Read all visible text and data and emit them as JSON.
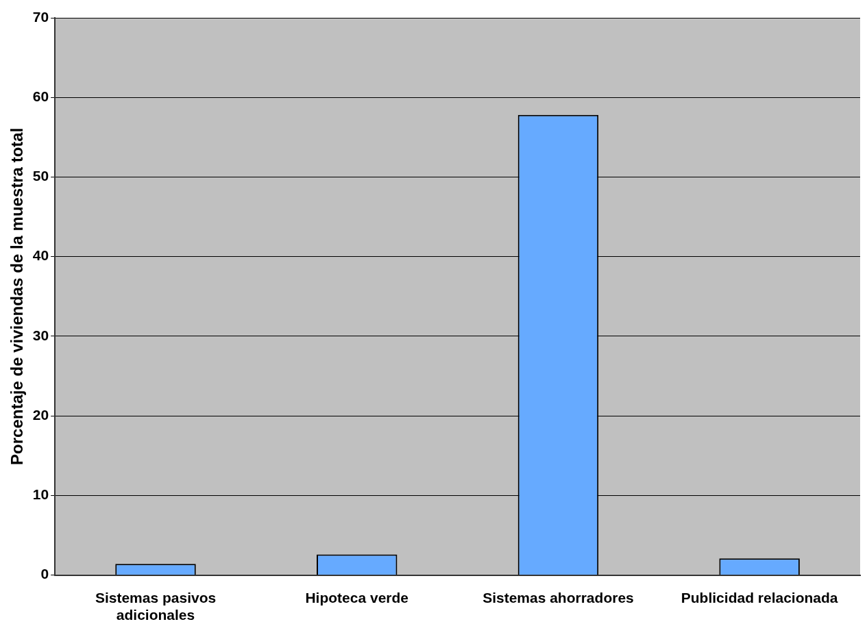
{
  "chart_data": {
    "type": "bar",
    "ylabel": "Porcentaje de viviendas de la muestra total",
    "categories": [
      "Sistemas pasivos adicionales",
      "Hipoteca verde",
      "Sistemas ahorradores",
      "Publicidad relacionada"
    ],
    "values": [
      1.4,
      2.6,
      57.8,
      2.1
    ],
    "color": "#66aaff",
    "ylim": [
      0,
      70
    ],
    "yticks": [
      0,
      10,
      20,
      30,
      40,
      50,
      60,
      70
    ],
    "grid": "y",
    "legend": false
  }
}
